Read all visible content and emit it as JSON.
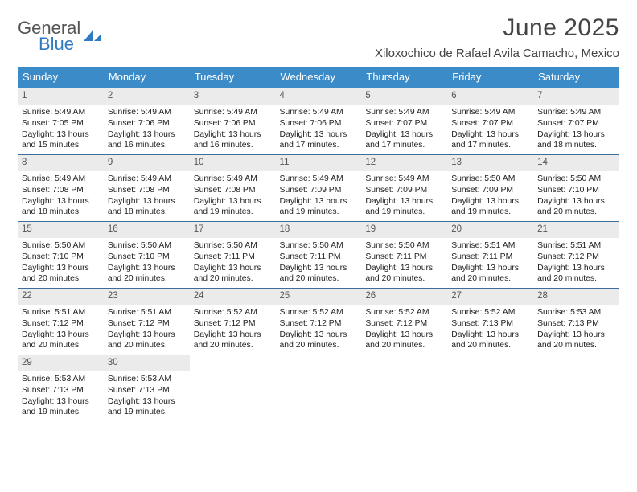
{
  "brand": {
    "line1": "General",
    "line2": "Blue"
  },
  "title": "June 2025",
  "location": "Xiloxochico de Rafael Avila Camacho, Mexico",
  "header_bg": "#3b8bc9",
  "header_text": "#ffffff",
  "daynum_bg": "#ebebeb",
  "row_border": "#3b6e9a",
  "day_names": [
    "Sunday",
    "Monday",
    "Tuesday",
    "Wednesday",
    "Thursday",
    "Friday",
    "Saturday"
  ],
  "weeks": [
    [
      {
        "n": "1",
        "sunrise": "5:49 AM",
        "sunset": "7:05 PM",
        "day_h": "13",
        "day_m": "15"
      },
      {
        "n": "2",
        "sunrise": "5:49 AM",
        "sunset": "7:06 PM",
        "day_h": "13",
        "day_m": "16"
      },
      {
        "n": "3",
        "sunrise": "5:49 AM",
        "sunset": "7:06 PM",
        "day_h": "13",
        "day_m": "16"
      },
      {
        "n": "4",
        "sunrise": "5:49 AM",
        "sunset": "7:06 PM",
        "day_h": "13",
        "day_m": "17"
      },
      {
        "n": "5",
        "sunrise": "5:49 AM",
        "sunset": "7:07 PM",
        "day_h": "13",
        "day_m": "17"
      },
      {
        "n": "6",
        "sunrise": "5:49 AM",
        "sunset": "7:07 PM",
        "day_h": "13",
        "day_m": "17"
      },
      {
        "n": "7",
        "sunrise": "5:49 AM",
        "sunset": "7:07 PM",
        "day_h": "13",
        "day_m": "18"
      }
    ],
    [
      {
        "n": "8",
        "sunrise": "5:49 AM",
        "sunset": "7:08 PM",
        "day_h": "13",
        "day_m": "18"
      },
      {
        "n": "9",
        "sunrise": "5:49 AM",
        "sunset": "7:08 PM",
        "day_h": "13",
        "day_m": "18"
      },
      {
        "n": "10",
        "sunrise": "5:49 AM",
        "sunset": "7:08 PM",
        "day_h": "13",
        "day_m": "19"
      },
      {
        "n": "11",
        "sunrise": "5:49 AM",
        "sunset": "7:09 PM",
        "day_h": "13",
        "day_m": "19"
      },
      {
        "n": "12",
        "sunrise": "5:49 AM",
        "sunset": "7:09 PM",
        "day_h": "13",
        "day_m": "19"
      },
      {
        "n": "13",
        "sunrise": "5:50 AM",
        "sunset": "7:09 PM",
        "day_h": "13",
        "day_m": "19"
      },
      {
        "n": "14",
        "sunrise": "5:50 AM",
        "sunset": "7:10 PM",
        "day_h": "13",
        "day_m": "20"
      }
    ],
    [
      {
        "n": "15",
        "sunrise": "5:50 AM",
        "sunset": "7:10 PM",
        "day_h": "13",
        "day_m": "20"
      },
      {
        "n": "16",
        "sunrise": "5:50 AM",
        "sunset": "7:10 PM",
        "day_h": "13",
        "day_m": "20"
      },
      {
        "n": "17",
        "sunrise": "5:50 AM",
        "sunset": "7:11 PM",
        "day_h": "13",
        "day_m": "20"
      },
      {
        "n": "18",
        "sunrise": "5:50 AM",
        "sunset": "7:11 PM",
        "day_h": "13",
        "day_m": "20"
      },
      {
        "n": "19",
        "sunrise": "5:50 AM",
        "sunset": "7:11 PM",
        "day_h": "13",
        "day_m": "20"
      },
      {
        "n": "20",
        "sunrise": "5:51 AM",
        "sunset": "7:11 PM",
        "day_h": "13",
        "day_m": "20"
      },
      {
        "n": "21",
        "sunrise": "5:51 AM",
        "sunset": "7:12 PM",
        "day_h": "13",
        "day_m": "20"
      }
    ],
    [
      {
        "n": "22",
        "sunrise": "5:51 AM",
        "sunset": "7:12 PM",
        "day_h": "13",
        "day_m": "20"
      },
      {
        "n": "23",
        "sunrise": "5:51 AM",
        "sunset": "7:12 PM",
        "day_h": "13",
        "day_m": "20"
      },
      {
        "n": "24",
        "sunrise": "5:52 AM",
        "sunset": "7:12 PM",
        "day_h": "13",
        "day_m": "20"
      },
      {
        "n": "25",
        "sunrise": "5:52 AM",
        "sunset": "7:12 PM",
        "day_h": "13",
        "day_m": "20"
      },
      {
        "n": "26",
        "sunrise": "5:52 AM",
        "sunset": "7:12 PM",
        "day_h": "13",
        "day_m": "20"
      },
      {
        "n": "27",
        "sunrise": "5:52 AM",
        "sunset": "7:13 PM",
        "day_h": "13",
        "day_m": "20"
      },
      {
        "n": "28",
        "sunrise": "5:53 AM",
        "sunset": "7:13 PM",
        "day_h": "13",
        "day_m": "20"
      }
    ],
    [
      {
        "n": "29",
        "sunrise": "5:53 AM",
        "sunset": "7:13 PM",
        "day_h": "13",
        "day_m": "19"
      },
      {
        "n": "30",
        "sunrise": "5:53 AM",
        "sunset": "7:13 PM",
        "day_h": "13",
        "day_m": "19"
      },
      null,
      null,
      null,
      null,
      null
    ]
  ],
  "labels": {
    "sunrise": "Sunrise:",
    "sunset": "Sunset:",
    "daylight": "Daylight:",
    "hours": "hours",
    "and": "and",
    "minutes": "minutes."
  }
}
